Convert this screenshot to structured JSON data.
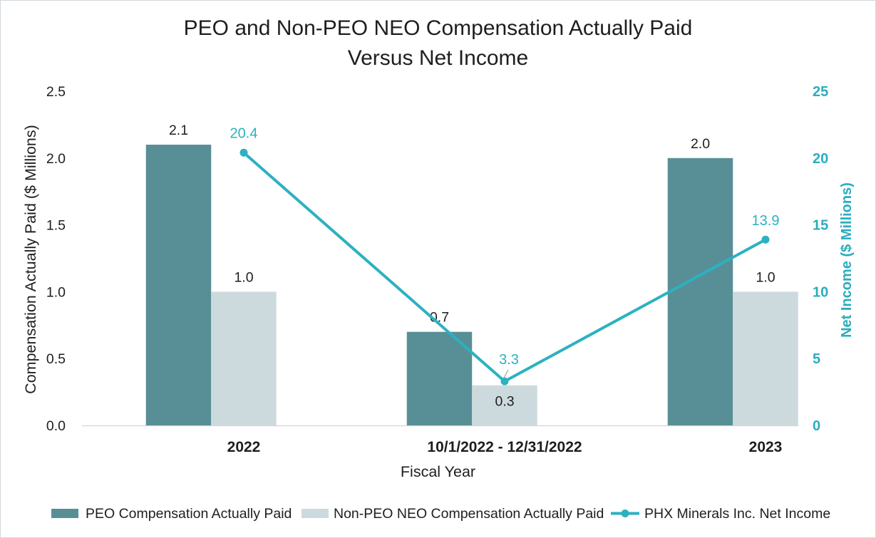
{
  "chart_data": {
    "type": "bar",
    "title_lines": [
      "PEO and Non-PEO NEO Compensation Actually Paid",
      "Versus Net Income"
    ],
    "categories": [
      "2022",
      "10/1/2022 - 12/31/2022",
      "2023"
    ],
    "xlabel": "Fiscal Year",
    "ylabel": "Compensation Actually Paid ($ Millions)",
    "y2label": "Net Income ($ Millions)",
    "ylim": [
      0,
      2.5
    ],
    "ytick_labels": [
      "0.0",
      "0.5",
      "1.0",
      "1.5",
      "2.0",
      "2.5"
    ],
    "y2lim": [
      0,
      25
    ],
    "y2tick_labels": [
      "0",
      "5",
      "10",
      "15",
      "20",
      "25"
    ],
    "grid": false,
    "legend_position": "bottom",
    "axis2_color": "#2aadbe",
    "series": [
      {
        "name": "PEO Compensation Actually Paid",
        "type": "bar",
        "values": [
          2.1,
          0.7,
          2.0
        ],
        "data_labels": [
          "2.1",
          "0.7",
          "2.0"
        ],
        "color": "#588f96"
      },
      {
        "name": "Non-PEO NEO Compensation Actually Paid",
        "type": "bar",
        "values": [
          1.0,
          0.3,
          1.0
        ],
        "data_labels": [
          "1.0",
          "0.3",
          "1.0"
        ],
        "color": "#cddadd"
      },
      {
        "name": "PHX Minerals Inc. Net Income",
        "type": "line",
        "values": [
          20.4,
          3.3,
          13.9
        ],
        "data_labels": [
          "20.4",
          "3.3",
          "13.9"
        ],
        "color": "#2cb1c1"
      }
    ]
  }
}
